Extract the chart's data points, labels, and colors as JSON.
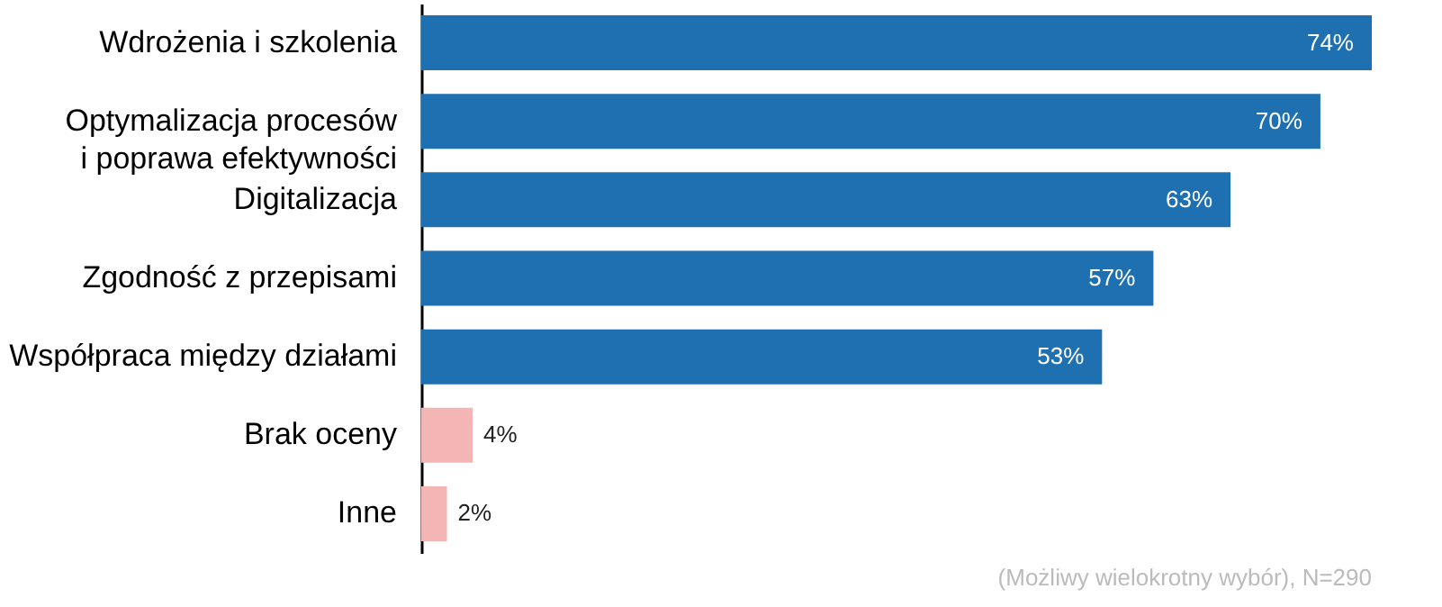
{
  "chart_data": {
    "type": "bar",
    "orientation": "horizontal",
    "categories": [
      "Wdrożenia i szkolenia",
      "Optymalizacja procesów\ni poprawa efektywności",
      "Digitalizacja",
      "Zgodność z przepisami",
      "Współpraca między działami",
      "Brak oceny",
      "Inne"
    ],
    "values": [
      74,
      70,
      63,
      57,
      53,
      4,
      2
    ],
    "colors": [
      "#1f70b0",
      "#1f70b0",
      "#1f70b0",
      "#1f70b0",
      "#1f70b0",
      "#f4b5b5",
      "#f4b5b5"
    ],
    "value_labels": [
      "74%",
      "70%",
      "63%",
      "57%",
      "53%",
      "4%",
      "2%"
    ],
    "annotations": [
      "(Możliwy wielokrotny wybór), N=290"
    ],
    "grid": false
  }
}
